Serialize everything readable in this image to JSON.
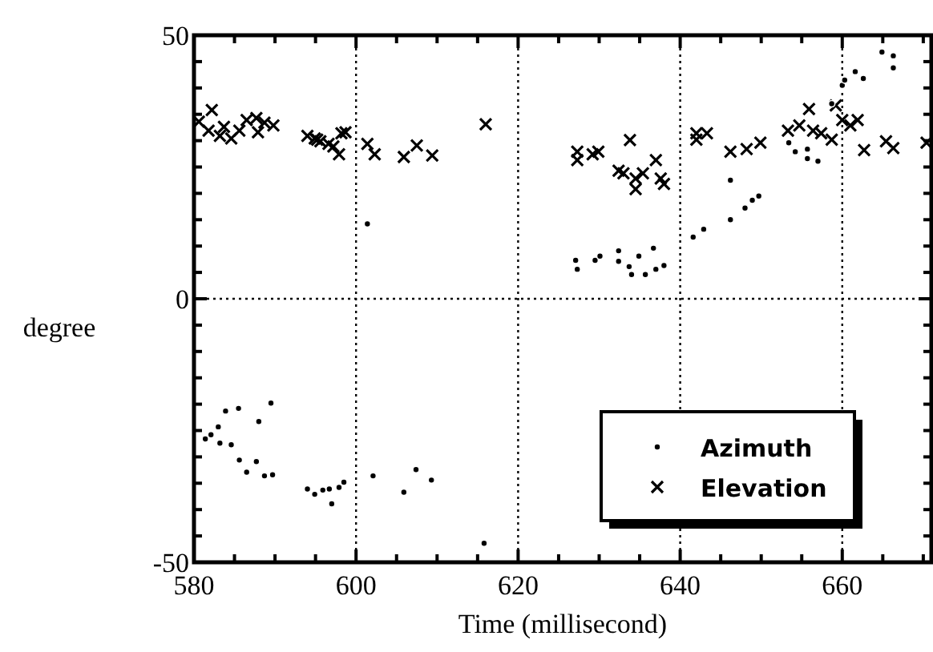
{
  "chart_data": {
    "type": "scatter",
    "xlabel": "Time (millisecond)",
    "ylabel": "degree",
    "xlim": [
      580,
      671
    ],
    "ylim": [
      -50,
      50
    ],
    "xticks": [
      580,
      {
        "value": 585,
        "label": null
      },
      {
        "value": 590,
        "label": null
      },
      {
        "value": 595,
        "label": null
      },
      600,
      {
        "value": 605,
        "label": null
      },
      {
        "value": 610,
        "label": null
      },
      {
        "value": 615,
        "label": null
      },
      620,
      {
        "value": 625,
        "label": null
      },
      {
        "value": 630,
        "label": null
      },
      {
        "value": 635,
        "label": null
      },
      640,
      {
        "value": 645,
        "label": null
      },
      {
        "value": 650,
        "label": null
      },
      {
        "value": 655,
        "label": null
      },
      660,
      {
        "value": 665,
        "label": null
      },
      {
        "value": 670,
        "label": null
      }
    ],
    "yticks": [
      -50,
      {
        "value": -45,
        "label": null
      },
      {
        "value": -40,
        "label": null
      },
      {
        "value": -35,
        "label": null
      },
      {
        "value": -30,
        "label": null
      },
      {
        "value": -25,
        "label": null
      },
      {
        "value": -20,
        "label": null
      },
      {
        "value": -15,
        "label": null
      },
      {
        "value": -10,
        "label": null
      },
      {
        "value": -5,
        "label": null
      },
      0,
      {
        "value": 5,
        "label": null
      },
      {
        "value": 10,
        "label": null
      },
      {
        "value": 15,
        "label": null
      },
      {
        "value": 20,
        "label": null
      },
      {
        "value": 25,
        "label": null
      },
      {
        "value": 30,
        "label": null
      },
      {
        "value": 35,
        "label": null
      },
      {
        "value": 40,
        "label": null
      },
      {
        "value": 45,
        "label": null
      },
      50
    ],
    "grid": true,
    "legend": "right",
    "series": [
      {
        "name": "Azimuth",
        "color": "#000000",
        "marker": "circle",
        "x": [
          581.4,
          582.1,
          583,
          583.2,
          583.9,
          584.6,
          585.5,
          585.6,
          586.5,
          587.7,
          588,
          588.7,
          589.5,
          589.7,
          594,
          594.9,
          595.9,
          596.7,
          597,
          597.9,
          598.5,
          601.4,
          602.1,
          605.9,
          607.4,
          609.3,
          615.8,
          627.1,
          627.3,
          629.5,
          630.1,
          632.4,
          632.4,
          633.7,
          634,
          634.9,
          635.7,
          636.7,
          637,
          638,
          641.6,
          642.9,
          646.2,
          646.2,
          648,
          648.9,
          649.7,
          653.4,
          654.2,
          655.7,
          655.7,
          657,
          658.7,
          660,
          660.3,
          661.6,
          662.6,
          664.9,
          666.3,
          666.3
        ],
        "values": [
          -26.6,
          -25.8,
          -24.3,
          -27.4,
          -21.3,
          -27.7,
          -20.8,
          -30.6,
          -32.9,
          -30.9,
          -23.3,
          -33.6,
          -19.8,
          -33.4,
          -36.1,
          -37.1,
          -36.3,
          -36.1,
          -38.9,
          -35.8,
          -34.8,
          14.2,
          -33.6,
          -36.7,
          -32.4,
          -34.4,
          -46.4,
          7.3,
          5.6,
          7.3,
          8.1,
          9.1,
          7.1,
          6.1,
          4.6,
          8.1,
          4.6,
          9.6,
          5.6,
          6.3,
          11.7,
          13.2,
          22.5,
          15,
          17.2,
          18.7,
          19.5,
          29.6,
          27.9,
          28.4,
          26.6,
          26.1,
          37,
          40.5,
          41.5,
          43.1,
          41.8,
          46.8,
          46.1,
          43.8
        ]
      },
      {
        "name": "Elevation",
        "color": "#000000",
        "marker": "cross",
        "x": [
          580.6,
          582.2,
          581.8,
          583.2,
          583.7,
          584.6,
          585.6,
          586.5,
          587.7,
          587.9,
          588.7,
          589.8,
          594,
          594.9,
          595.2,
          595.6,
          596.6,
          597.2,
          597.9,
          598.2,
          598.7,
          601.4,
          602.3,
          605.9,
          607.5,
          609.4,
          616,
          627.3,
          627.3,
          629.2,
          629.9,
          633.8,
          632.4,
          633,
          634.5,
          634.5,
          635.4,
          637,
          637.6,
          638,
          642,
          642,
          643.3,
          646.2,
          648.2,
          649.9,
          653.3,
          654.7,
          655.9,
          656.4,
          657.4,
          658.7,
          659.2,
          660,
          661,
          661.9,
          662.7,
          665.4,
          666.3,
          670.4
        ],
        "values": [
          33.6,
          35.8,
          31.9,
          30.9,
          32.6,
          30.4,
          31.9,
          33.9,
          34.3,
          31.6,
          33.4,
          32.9,
          30.9,
          30.4,
          30.2,
          29.9,
          29.4,
          28.9,
          27.4,
          31.4,
          31.6,
          29.4,
          27.4,
          26.9,
          29.1,
          27.2,
          33.1,
          27.9,
          26.3,
          27.4,
          27.9,
          30.1,
          24.3,
          23.8,
          22.8,
          20.8,
          23.8,
          26.3,
          22.8,
          21.8,
          31.4,
          30.2,
          31.4,
          27.9,
          28.4,
          29.6,
          31.9,
          32.9,
          36,
          31.9,
          31.4,
          30.2,
          36.7,
          33.9,
          32.9,
          33.9,
          28.2,
          29.9,
          28.6,
          29.6
        ]
      }
    ]
  }
}
